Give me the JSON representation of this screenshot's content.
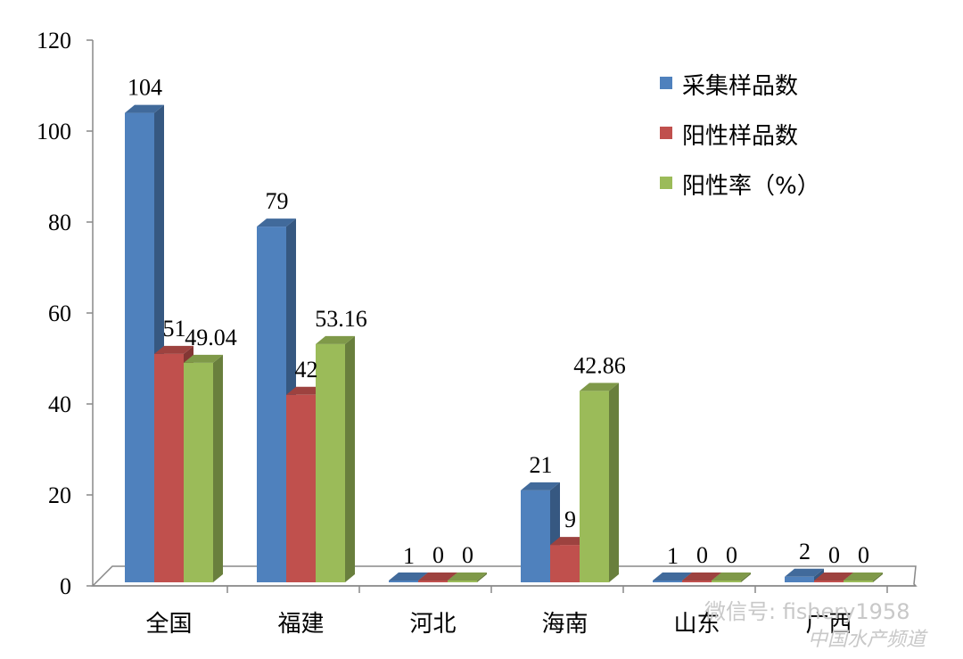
{
  "chart_data": {
    "type": "bar",
    "categories": [
      "全国",
      "福建",
      "河北",
      "海南",
      "山东",
      "广西"
    ],
    "series": [
      {
        "name": "采集样品数",
        "values": [
          104,
          79,
          1,
          21,
          1,
          2
        ],
        "labels": [
          "104",
          "79",
          "1",
          "21",
          "1",
          "2"
        ],
        "color": "#4f81bd"
      },
      {
        "name": "阳性样品数",
        "values": [
          51,
          42,
          0,
          9,
          0,
          0
        ],
        "labels": [
          "51",
          "42",
          "0",
          "9",
          "0",
          "0"
        ],
        "color": "#c0504d"
      },
      {
        "name": "阳性率（%）",
        "values": [
          49.04,
          53.16,
          0,
          42.86,
          0,
          0
        ],
        "labels": [
          "49.04",
          "53.16",
          "0",
          "42.86",
          "0",
          "0"
        ],
        "color": "#9bbb59"
      }
    ],
    "yticks": [
      "0",
      "20",
      "40",
      "60",
      "80",
      "100",
      "120"
    ],
    "ylim": [
      0,
      120
    ],
    "grid": false,
    "legend_position": "top-right",
    "title": "",
    "xlabel": "",
    "ylabel": ""
  },
  "watermark": {
    "wechat": "微信号: fishery1958",
    "site": "中国水产频道"
  }
}
